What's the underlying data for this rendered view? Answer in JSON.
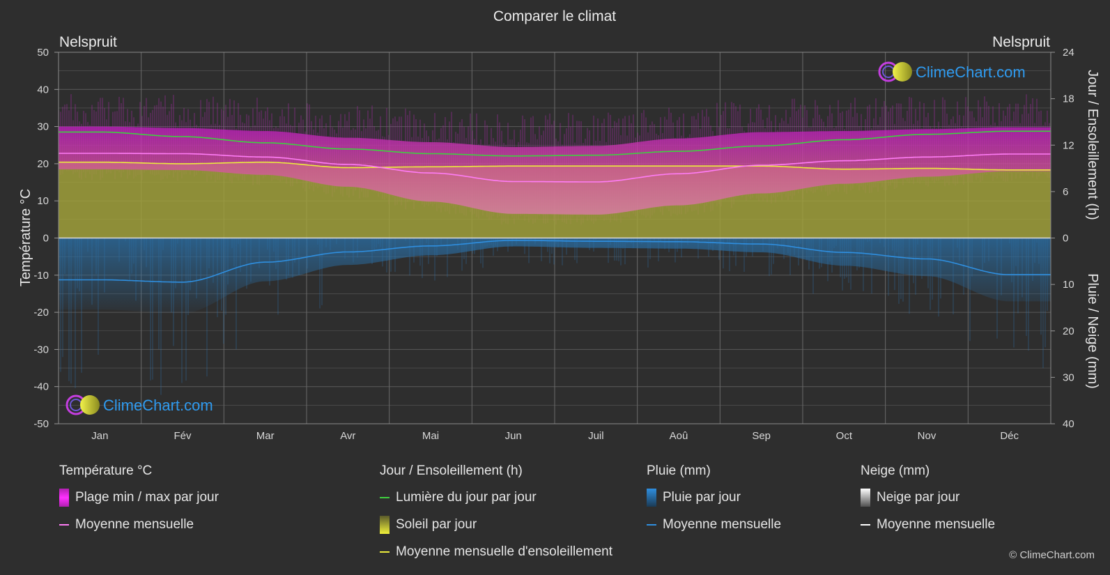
{
  "title": "Comparer le climat",
  "location_left": "Nelspruit",
  "location_right": "Nelspruit",
  "watermark": "ClimeChart.com",
  "copyright": "© ClimeChart.com",
  "colors": {
    "background": "#2e2e2e",
    "temp_range": "#d020d0",
    "temp_mean": "#ff7cf6",
    "daylight": "#3fd13f",
    "sunshine_fill": "#a6a630",
    "sunshine_mean": "#ecec3c",
    "rain": "#2f8fd6",
    "rain_mean": "#2f8fe0",
    "snow_mean": "#ffffff",
    "brand": "#2f9bf0"
  },
  "chart_data": {
    "type": "area",
    "title": "Comparer le climat",
    "categories": [
      "Jan",
      "Fév",
      "Mar",
      "Avr",
      "Mai",
      "Jun",
      "Juil",
      "Aoû",
      "Sep",
      "Oct",
      "Nov",
      "Déc"
    ],
    "axes": {
      "left": {
        "label": "Température °C",
        "range": [
          -50,
          50
        ],
        "ticks": [
          "50",
          "40",
          "30",
          "20",
          "10",
          "0",
          "-10",
          "-20",
          "-30",
          "-40",
          "-50"
        ]
      },
      "right_top": {
        "label": "Jour / Ensoleillement (h)",
        "range": [
          0,
          24
        ],
        "ticks": [
          "24",
          "18",
          "12",
          "6",
          "0"
        ]
      },
      "right_bottom": {
        "label": "Pluie / Neige (mm)",
        "range": [
          0,
          40
        ],
        "ticks": [
          "0",
          "10",
          "20",
          "30",
          "40"
        ]
      }
    },
    "grid": true,
    "series": [
      {
        "name": "Moyenne mensuelle",
        "group": "Température °C",
        "unit": "°C",
        "values": [
          22.8,
          22.7,
          21.8,
          19.8,
          17.5,
          15.2,
          15.1,
          17.3,
          19.6,
          20.8,
          21.8,
          22.6
        ]
      },
      {
        "name": "Plage min / max par jour",
        "group": "Température °C",
        "unit": "°C",
        "min": [
          18.5,
          18.3,
          17.0,
          13.8,
          9.8,
          6.5,
          6.3,
          8.8,
          12.0,
          14.6,
          16.5,
          18.0
        ],
        "max": [
          30.0,
          29.6,
          28.8,
          27.0,
          25.8,
          24.5,
          24.8,
          26.8,
          28.5,
          28.8,
          29.3,
          29.8
        ]
      },
      {
        "name": "Lumière du jour par jour",
        "group": "Jour / Ensoleillement (h)",
        "unit": "h",
        "values": [
          13.7,
          13.1,
          12.3,
          11.5,
          10.9,
          10.6,
          10.7,
          11.2,
          11.9,
          12.7,
          13.4,
          13.8
        ]
      },
      {
        "name": "Soleil par jour",
        "group": "Jour / Ensoleillement (h)",
        "unit": "h",
        "values": [
          9.8,
          9.6,
          9.8,
          9.1,
          9.2,
          9.3,
          9.3,
          9.3,
          9.3,
          8.9,
          9.0,
          8.8
        ]
      },
      {
        "name": "Moyenne mensuelle d'ensoleillement",
        "group": "Jour / Ensoleillement (h)",
        "unit": "h",
        "values": [
          9.8,
          9.6,
          9.8,
          9.1,
          9.2,
          9.3,
          9.3,
          9.3,
          9.3,
          8.9,
          9.0,
          8.8
        ]
      },
      {
        "name": "Moyenne mensuelle",
        "group": "Pluie (mm)",
        "unit": "mm",
        "values": [
          9.0,
          9.5,
          5.2,
          3.0,
          1.7,
          0.5,
          0.7,
          0.8,
          1.3,
          3.1,
          4.5,
          7.9
        ]
      },
      {
        "name": "Moyenne mensuelle",
        "group": "Neige (mm)",
        "unit": "mm",
        "values": [
          0,
          0,
          0,
          0,
          0,
          0,
          0,
          0,
          0,
          0,
          0,
          0
        ]
      }
    ]
  },
  "legend": {
    "temperature": {
      "title": "Température °C",
      "items": [
        "Plage min / max par jour",
        "Moyenne mensuelle"
      ]
    },
    "sun": {
      "title": "Jour / Ensoleillement (h)",
      "items": [
        "Lumière du jour par jour",
        "Soleil par jour",
        "Moyenne mensuelle d'ensoleillement"
      ]
    },
    "rain": {
      "title": "Pluie (mm)",
      "items": [
        "Pluie par jour",
        "Moyenne mensuelle"
      ]
    },
    "snow": {
      "title": "Neige (mm)",
      "items": [
        "Neige par jour",
        "Moyenne mensuelle"
      ]
    }
  }
}
